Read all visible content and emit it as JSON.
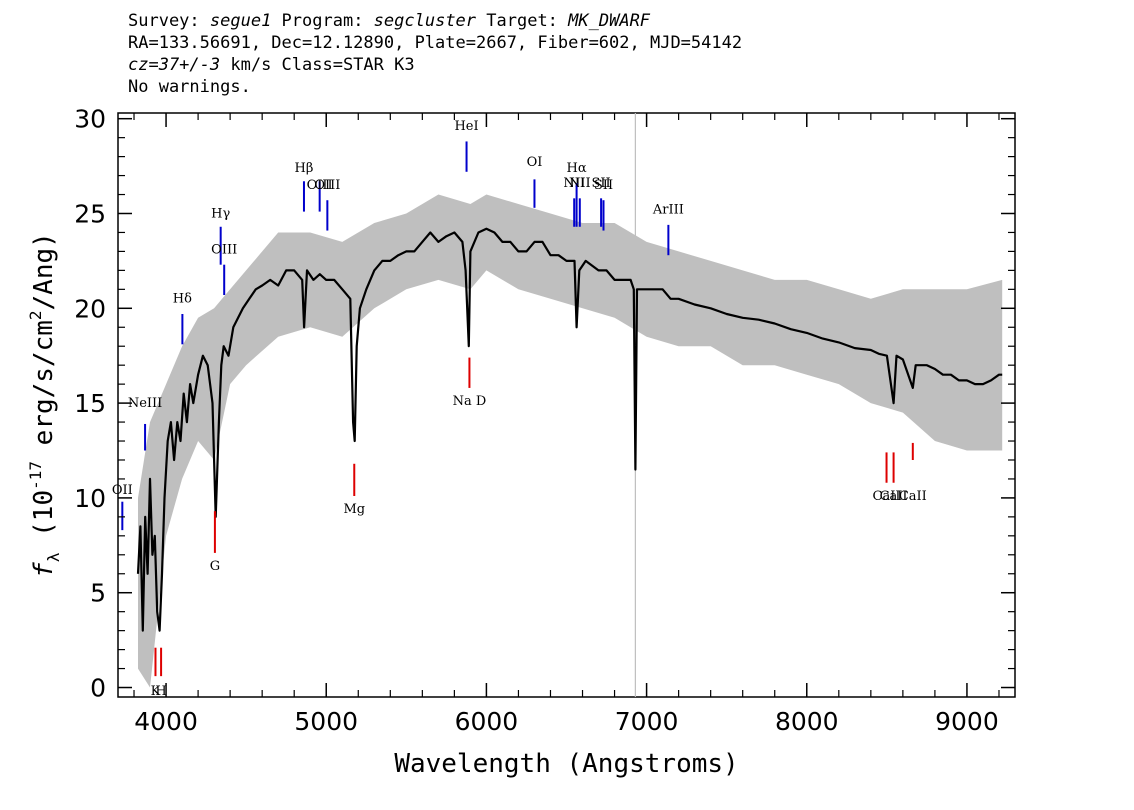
{
  "header": {
    "line1": [
      {
        "text": "Survey: ",
        "italic": false
      },
      {
        "text": "segue1",
        "italic": true
      },
      {
        "text": " Program: ",
        "italic": false
      },
      {
        "text": "segcluster",
        "italic": true
      },
      {
        "text": " Target: ",
        "italic": false
      },
      {
        "text": "MK_DWARF",
        "italic": true
      }
    ],
    "line2": "RA=133.56691, Dec=12.12890, Plate=2667, Fiber=602, MJD=54142",
    "line3": [
      {
        "text": "cz=37+/-3",
        "italic": true
      },
      {
        "text": " km/s Class=STAR K3",
        "italic": false
      }
    ],
    "line4": "No warnings."
  },
  "chart_data": {
    "type": "line",
    "xlabel": "Wavelength (Angstroms)",
    "ylabel": "f_λ (10^-17 erg/s/cm^2/Ang)",
    "xlim": [
      3700,
      9300
    ],
    "ylim": [
      -0.5,
      30.3
    ],
    "x_ticks": [
      4000,
      5000,
      6000,
      7000,
      8000,
      9000
    ],
    "y_ticks": [
      0,
      5,
      10,
      15,
      20,
      25,
      30
    ],
    "grid": false,
    "vertical_marker": 6930,
    "series": [
      {
        "role": "flux",
        "color": "#000000",
        "points": [
          [
            3825,
            6
          ],
          [
            3840,
            8.5
          ],
          [
            3855,
            3
          ],
          [
            3870,
            9
          ],
          [
            3885,
            6
          ],
          [
            3900,
            11
          ],
          [
            3915,
            7
          ],
          [
            3930,
            8
          ],
          [
            3945,
            4
          ],
          [
            3960,
            3
          ],
          [
            3975,
            6
          ],
          [
            3990,
            10
          ],
          [
            4010,
            13
          ],
          [
            4030,
            14
          ],
          [
            4050,
            12
          ],
          [
            4070,
            14
          ],
          [
            4090,
            13
          ],
          [
            4110,
            15.5
          ],
          [
            4130,
            14
          ],
          [
            4150,
            16
          ],
          [
            4170,
            15
          ],
          [
            4200,
            16.5
          ],
          [
            4230,
            17.5
          ],
          [
            4260,
            17
          ],
          [
            4290,
            15
          ],
          [
            4310,
            9
          ],
          [
            4330,
            14
          ],
          [
            4345,
            17
          ],
          [
            4360,
            18
          ],
          [
            4390,
            17.5
          ],
          [
            4420,
            19
          ],
          [
            4450,
            19.5
          ],
          [
            4480,
            20
          ],
          [
            4520,
            20.5
          ],
          [
            4560,
            21
          ],
          [
            4600,
            21.2
          ],
          [
            4650,
            21.5
          ],
          [
            4700,
            21.2
          ],
          [
            4750,
            22
          ],
          [
            4800,
            22
          ],
          [
            4850,
            21.5
          ],
          [
            4862,
            19
          ],
          [
            4880,
            22
          ],
          [
            4920,
            21.5
          ],
          [
            4960,
            21.8
          ],
          [
            5000,
            21.5
          ],
          [
            5050,
            21.5
          ],
          [
            5100,
            21
          ],
          [
            5150,
            20.5
          ],
          [
            5168,
            14
          ],
          [
            5178,
            13
          ],
          [
            5190,
            18
          ],
          [
            5210,
            20
          ],
          [
            5250,
            21
          ],
          [
            5300,
            22
          ],
          [
            5350,
            22.5
          ],
          [
            5400,
            22.5
          ],
          [
            5450,
            22.8
          ],
          [
            5500,
            23
          ],
          [
            5550,
            23
          ],
          [
            5600,
            23.5
          ],
          [
            5650,
            24
          ],
          [
            5700,
            23.5
          ],
          [
            5750,
            23.8
          ],
          [
            5800,
            24
          ],
          [
            5850,
            23.5
          ],
          [
            5870,
            22
          ],
          [
            5890,
            18
          ],
          [
            5900,
            23
          ],
          [
            5950,
            24
          ],
          [
            6000,
            24.2
          ],
          [
            6050,
            24
          ],
          [
            6100,
            23.5
          ],
          [
            6150,
            23.5
          ],
          [
            6200,
            23
          ],
          [
            6250,
            23
          ],
          [
            6300,
            23.5
          ],
          [
            6350,
            23.5
          ],
          [
            6400,
            22.8
          ],
          [
            6450,
            22.8
          ],
          [
            6500,
            22.5
          ],
          [
            6550,
            22.5
          ],
          [
            6563,
            19
          ],
          [
            6580,
            22
          ],
          [
            6620,
            22.5
          ],
          [
            6700,
            22
          ],
          [
            6750,
            22
          ],
          [
            6800,
            21.5
          ],
          [
            6850,
            21.5
          ],
          [
            6900,
            21.5
          ],
          [
            6920,
            21
          ],
          [
            6930,
            11.5
          ],
          [
            6940,
            21
          ],
          [
            6980,
            21
          ],
          [
            7050,
            21
          ],
          [
            7100,
            21
          ],
          [
            7150,
            20.5
          ],
          [
            7200,
            20.5
          ],
          [
            7300,
            20.2
          ],
          [
            7400,
            20
          ],
          [
            7500,
            19.7
          ],
          [
            7600,
            19.5
          ],
          [
            7700,
            19.4
          ],
          [
            7800,
            19.2
          ],
          [
            7900,
            18.9
          ],
          [
            8000,
            18.7
          ],
          [
            8100,
            18.4
          ],
          [
            8200,
            18.2
          ],
          [
            8300,
            17.9
          ],
          [
            8400,
            17.8
          ],
          [
            8450,
            17.6
          ],
          [
            8500,
            17.5
          ],
          [
            8542,
            15
          ],
          [
            8560,
            17.5
          ],
          [
            8600,
            17.3
          ],
          [
            8662,
            15.8
          ],
          [
            8680,
            17
          ],
          [
            8750,
            17
          ],
          [
            8800,
            16.8
          ],
          [
            8850,
            16.5
          ],
          [
            8900,
            16.5
          ],
          [
            8950,
            16.2
          ],
          [
            9000,
            16.2
          ],
          [
            9050,
            16
          ],
          [
            9100,
            16
          ],
          [
            9150,
            16.2
          ],
          [
            9200,
            16.5
          ],
          [
            9220,
            16.5
          ]
        ]
      },
      {
        "role": "error-band",
        "color": "#bfbfbf",
        "upper": [
          [
            3825,
            10
          ],
          [
            3900,
            14
          ],
          [
            4000,
            16
          ],
          [
            4100,
            18
          ],
          [
            4200,
            19.5
          ],
          [
            4300,
            20
          ],
          [
            4400,
            21
          ],
          [
            4500,
            22
          ],
          [
            4700,
            24
          ],
          [
            4900,
            24
          ],
          [
            5100,
            23.5
          ],
          [
            5300,
            24.5
          ],
          [
            5500,
            25
          ],
          [
            5700,
            26
          ],
          [
            5900,
            25.5
          ],
          [
            6000,
            26
          ],
          [
            6200,
            25.5
          ],
          [
            6400,
            25
          ],
          [
            6600,
            24.5
          ],
          [
            6800,
            24.5
          ],
          [
            7000,
            23.5
          ],
          [
            7200,
            23
          ],
          [
            7400,
            22.5
          ],
          [
            7600,
            22
          ],
          [
            7800,
            21.5
          ],
          [
            8000,
            21.5
          ],
          [
            8200,
            21
          ],
          [
            8400,
            20.5
          ],
          [
            8600,
            21
          ],
          [
            8800,
            21
          ],
          [
            9000,
            21
          ],
          [
            9220,
            21.5
          ]
        ],
        "lower": [
          [
            3825,
            1
          ],
          [
            3900,
            0
          ],
          [
            4000,
            8
          ],
          [
            4100,
            11
          ],
          [
            4200,
            13
          ],
          [
            4300,
            12
          ],
          [
            4400,
            16
          ],
          [
            4500,
            17
          ],
          [
            4700,
            18.5
          ],
          [
            4900,
            19
          ],
          [
            5100,
            18.5
          ],
          [
            5300,
            20
          ],
          [
            5500,
            21
          ],
          [
            5700,
            21.5
          ],
          [
            5900,
            21
          ],
          [
            6000,
            22
          ],
          [
            6200,
            21
          ],
          [
            6400,
            20.5
          ],
          [
            6600,
            20
          ],
          [
            6800,
            19.5
          ],
          [
            7000,
            18.5
          ],
          [
            7200,
            18
          ],
          [
            7400,
            18
          ],
          [
            7600,
            17
          ],
          [
            7800,
            17
          ],
          [
            8000,
            16.5
          ],
          [
            8200,
            16
          ],
          [
            8400,
            15
          ],
          [
            8600,
            14.5
          ],
          [
            8800,
            13
          ],
          [
            9000,
            12.5
          ],
          [
            9220,
            12.5
          ]
        ]
      }
    ],
    "emission_lines": [
      {
        "label": "OII",
        "x": 3727,
        "y0": 8.3,
        "y1": 9.8,
        "ly": 10.2
      },
      {
        "label": "NeIII",
        "x": 3869,
        "y0": 12.5,
        "y1": 13.9,
        "ly": 14.8
      },
      {
        "label": "Hδ",
        "x": 4102,
        "y0": 18.1,
        "y1": 19.7,
        "ly": 20.3
      },
      {
        "label": "Hγ",
        "x": 4341,
        "y0": 22.3,
        "y1": 24.3,
        "ly": 24.8
      },
      {
        "label": "OIII",
        "x": 4363,
        "y0": 20.7,
        "y1": 22.3,
        "ly": 22.9
      },
      {
        "label": "Hβ",
        "x": 4861,
        "y0": 25.1,
        "y1": 26.7,
        "ly": 27.2
      },
      {
        "label": "OIII",
        "x": 4959,
        "y0": 25.1,
        "y1": 26.7,
        "ly": 26.3
      },
      {
        "label": "OIII",
        "x": 5007,
        "y0": 24.1,
        "y1": 25.7,
        "ly": 26.3
      },
      {
        "label": "HeI",
        "x": 5876,
        "y0": 27.2,
        "y1": 28.8,
        "ly": 29.4
      },
      {
        "label": "OI",
        "x": 6300,
        "y0": 25.3,
        "y1": 26.8,
        "ly": 27.5
      },
      {
        "label": "NII",
        "x": 6548,
        "y0": 24.3,
        "y1": 25.8,
        "ly": 26.4
      },
      {
        "label": "Hα",
        "x": 6563,
        "y0": 24.3,
        "y1": 26.6,
        "ly": 27.2
      },
      {
        "label": "NII",
        "x": 6583,
        "y0": 24.3,
        "y1": 25.8,
        "ly": 26.4
      },
      {
        "label": "SII",
        "x": 6716,
        "y0": 24.3,
        "y1": 25.8,
        "ly": 26.4
      },
      {
        "label": "SII",
        "x": 6731,
        "y0": 24.1,
        "y1": 25.7,
        "ly": 26.3
      },
      {
        "label": "ArIII",
        "x": 7136,
        "y0": 22.8,
        "y1": 24.4,
        "ly": 25.0
      }
    ],
    "absorption_lines": [
      {
        "label": "K",
        "x": 3934,
        "y0": 0.6,
        "y1": 2.1,
        "ly": -0.4
      },
      {
        "label": "H",
        "x": 3969,
        "y0": 0.6,
        "y1": 2.1,
        "ly": -0.4
      },
      {
        "label": "G",
        "x": 4305,
        "y0": 7.1,
        "y1": 9.3,
        "ly": 6.2
      },
      {
        "label": "Mg",
        "x": 5175,
        "y0": 10.1,
        "y1": 11.8,
        "ly": 9.2
      },
      {
        "label": "Na D",
        "x": 5894,
        "y0": 15.8,
        "y1": 17.4,
        "ly": 14.9
      },
      {
        "label": "CaII",
        "x": 8498,
        "y0": 10.8,
        "y1": 12.4,
        "ly": 9.9
      },
      {
        "label": "CaII",
        "x": 8542,
        "y0": 10.8,
        "y1": 12.4,
        "ly": 9.9
      },
      {
        "label": "CaII",
        "x": 8662,
        "y0": 12.0,
        "y1": 12.9,
        "ly": 9.9
      }
    ],
    "colors": {
      "emission": "#0000cc",
      "absorption": "#dd0000",
      "flux": "#000000",
      "error": "#bfbfbf",
      "marker": "#bfbfbf"
    }
  }
}
